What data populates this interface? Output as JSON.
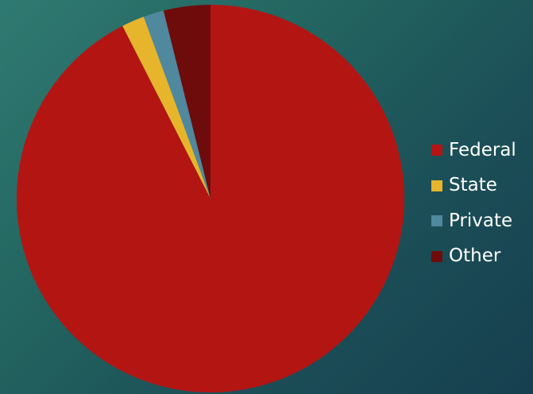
{
  "chart_data": {
    "type": "pie",
    "title": "",
    "categories": [
      "Federal",
      "State",
      "Private",
      "Other"
    ],
    "values": [
      92.5,
      1.9,
      1.7,
      3.9
    ],
    "colors": [
      "#b31513",
      "#e6b52c",
      "#50889e",
      "#6e0c0c"
    ],
    "start_angle_deg": 0,
    "direction": "counterclockwise-from-top",
    "legend": {
      "placement": "right",
      "items": [
        {
          "label": "Federal",
          "color": "#b31513"
        },
        {
          "label": "State",
          "color": "#e6b52c"
        },
        {
          "label": "Private",
          "color": "#50889e"
        },
        {
          "label": "Other",
          "color": "#6e0c0c"
        }
      ]
    }
  }
}
